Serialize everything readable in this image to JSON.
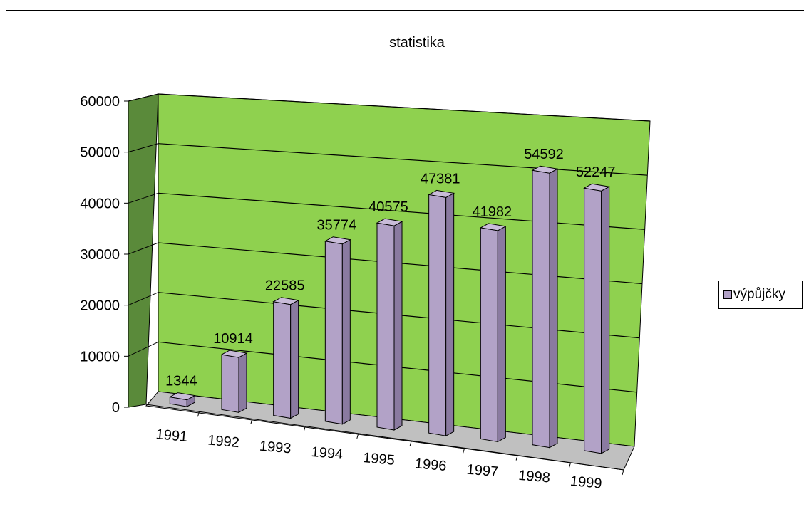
{
  "chart_data": {
    "type": "bar",
    "title": "statistika",
    "categories": [
      "1991",
      "1992",
      "1993",
      "1994",
      "1995",
      "1996",
      "1997",
      "1998",
      "1999"
    ],
    "series": [
      {
        "name": "výpůjčky",
        "values": [
          1344,
          10914,
          22585,
          35774,
          40575,
          47381,
          41982,
          54592,
          52247
        ]
      }
    ],
    "y_ticks": [
      "0",
      "10000",
      "20000",
      "30000",
      "40000",
      "50000",
      "60000"
    ],
    "ylim": [
      0,
      60000
    ],
    "grid": true,
    "legend": "right",
    "colors": {
      "wall": "#8fd14f",
      "side_wall": "#5a8a3a",
      "bar": "#b2a2c7",
      "bar_top": "#c9bcd9",
      "bar_side": "#8a7aa0",
      "floor": "#c0c0c0"
    }
  }
}
